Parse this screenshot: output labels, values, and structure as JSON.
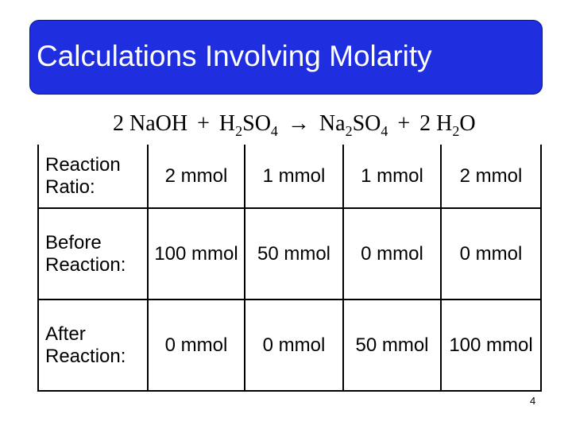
{
  "title": "Calculations Involving Molarity",
  "equation": [
    {
      "text": "2 NaOH"
    },
    {
      "text": "+"
    },
    {
      "text": "H"
    },
    {
      "sub": "2"
    },
    {
      "text": "SO"
    },
    {
      "sub": "4"
    },
    {
      "text": "→"
    },
    {
      "text": "Na"
    },
    {
      "sub": "2"
    },
    {
      "text": "SO"
    },
    {
      "sub": "4"
    },
    {
      "text": "+"
    },
    {
      "text": "2 H"
    },
    {
      "sub": "2"
    },
    {
      "text": "O"
    }
  ],
  "table": {
    "rows": [
      [
        "Reaction Ratio:",
        "2 mmol",
        "1 mmol",
        "1 mmol",
        "2 mmol"
      ],
      [
        "Before Reaction:",
        "100 mmol",
        "50 mmol",
        "0 mmol",
        "0 mmol"
      ],
      [
        "After Reaction:",
        "0 mmol",
        "0 mmol",
        "50 mmol",
        "100 mmol"
      ]
    ]
  },
  "page_number": "4"
}
